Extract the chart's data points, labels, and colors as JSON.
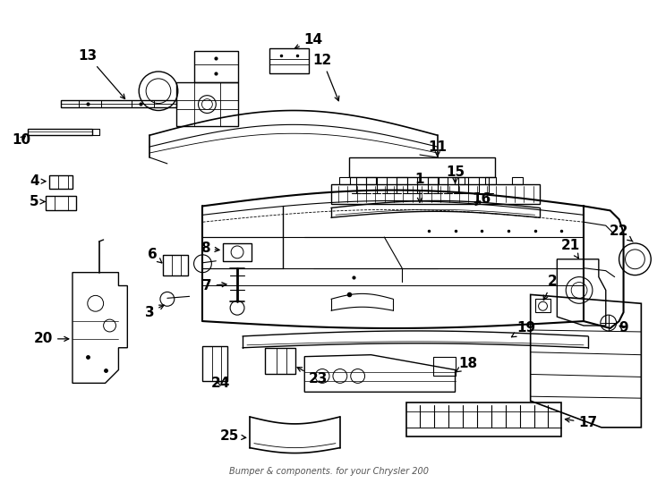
{
  "bg_color": "#ffffff",
  "subtitle": "Bumper & components. for your Chrysler 200",
  "figsize": [
    7.34,
    5.4
  ],
  "dpi": 100
}
